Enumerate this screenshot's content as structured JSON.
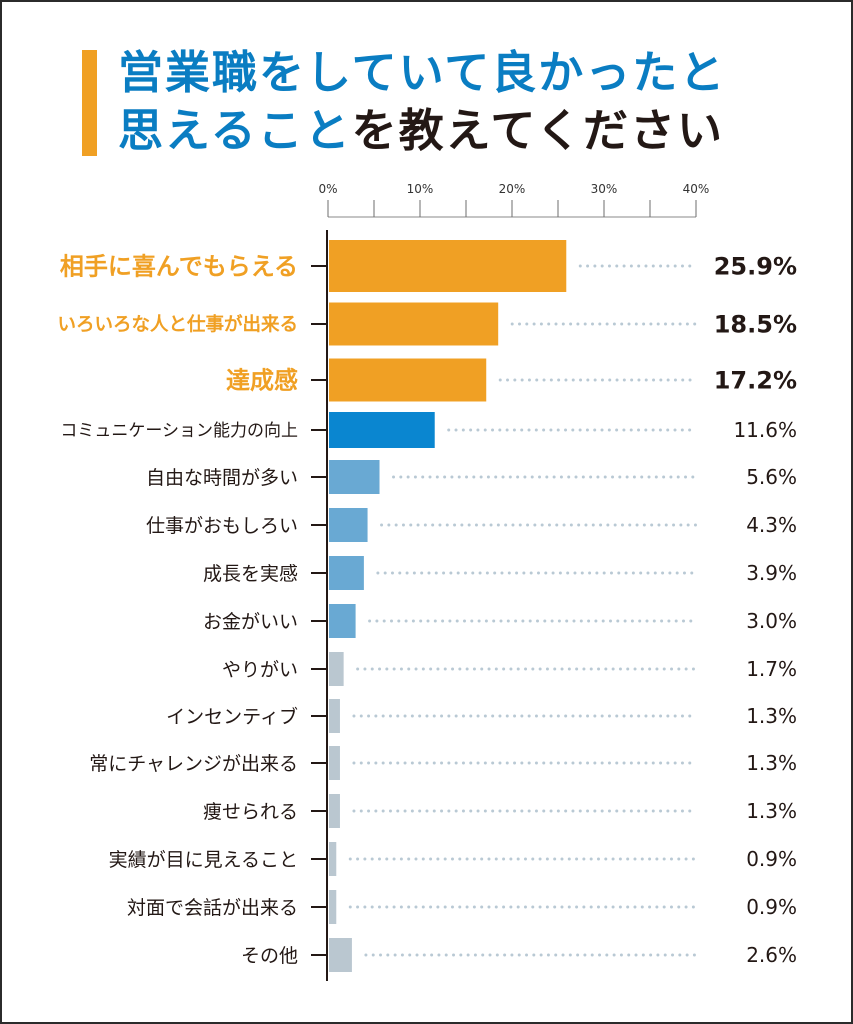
{
  "title": {
    "line1": "営業職をしていて良かったと",
    "line2_blue": "思えること",
    "line2_dark": "を教えてください"
  },
  "colors": {
    "accent_orange": "#f0a024",
    "title_blue": "#0a7dc2",
    "highlight_blue": "#0a86d0",
    "mid_blue": "#69a9d3",
    "grey": "#bac7d0",
    "text_dark": "#231815",
    "dot": "#b9c9d4"
  },
  "chart_data": {
    "type": "bar",
    "orientation": "horizontal",
    "title": "営業職をしていて良かったと思えることを教えてください",
    "xlabel": "",
    "ylabel": "",
    "xlim": [
      0,
      40
    ],
    "x_ticks": [
      "0%",
      "10%",
      "20%",
      "30%",
      "40%"
    ],
    "grid": false,
    "categories": [
      "相手に喜んでもらえる",
      "いろいろな人と仕事が出来る",
      "達成感",
      "コミュニケーション能力の向上",
      "自由な時間が多い",
      "仕事がおもしろい",
      "成長を実感",
      "お金がいい",
      "やりがい",
      "インセンティブ",
      "常にチャレンジが出来る",
      "痩せられる",
      "実績が目に見えること",
      "対面で会話が出来る",
      "その他"
    ],
    "values": [
      25.9,
      18.5,
      17.2,
      11.6,
      5.6,
      4.3,
      3.9,
      3.0,
      1.7,
      1.3,
      1.3,
      1.3,
      0.9,
      0.9,
      2.6
    ],
    "value_labels": [
      "25.9%",
      "18.5%",
      "17.2%",
      "11.6%",
      "5.6%",
      "4.3%",
      "3.9%",
      "3.0%",
      "1.7%",
      "1.3%",
      "1.3%",
      "1.3%",
      "0.9%",
      "0.9%",
      "2.6%"
    ],
    "tiers": [
      "top",
      "top",
      "top",
      "highlight",
      "mid",
      "mid",
      "mid",
      "mid",
      "low",
      "low",
      "low",
      "low",
      "low",
      "low",
      "low"
    ]
  }
}
